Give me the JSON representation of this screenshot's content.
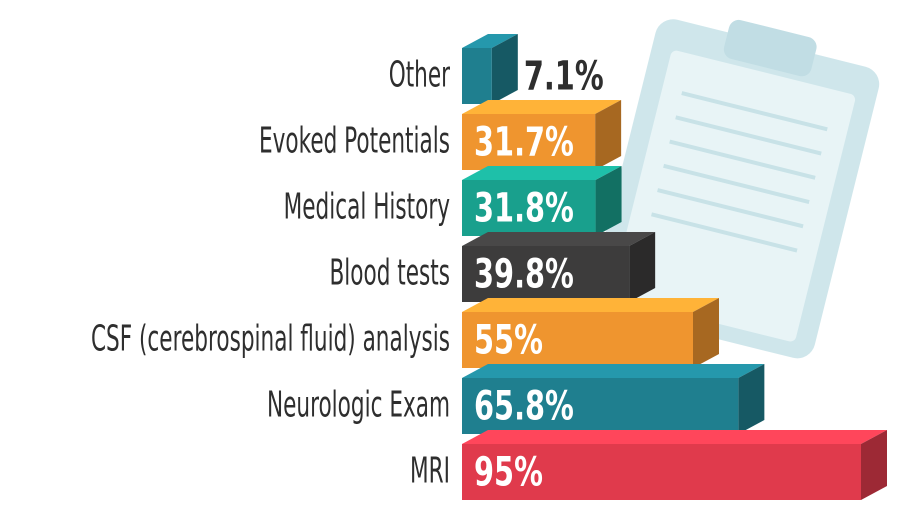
{
  "chart_data": {
    "type": "bar3d",
    "categories": [
      "Other",
      "Evoked Potentials",
      "Medical History",
      "Blood tests",
      "CSF (cerebrospinal fluid) analysis",
      "Neurologic Exam",
      "MRI"
    ],
    "values": [
      7.1,
      31.7,
      31.8,
      39.8,
      55,
      65.8,
      95
    ],
    "value_labels": [
      "7.1%",
      "31.7%",
      "31.8%",
      "39.8%",
      "55%",
      "65.8%",
      "95%"
    ],
    "colors": [
      "#1f7f8f",
      "#ef952f",
      "#19a08d",
      "#3d3c3c",
      "#ef952f",
      "#1f7f8f",
      "#e03a4c"
    ]
  }
}
